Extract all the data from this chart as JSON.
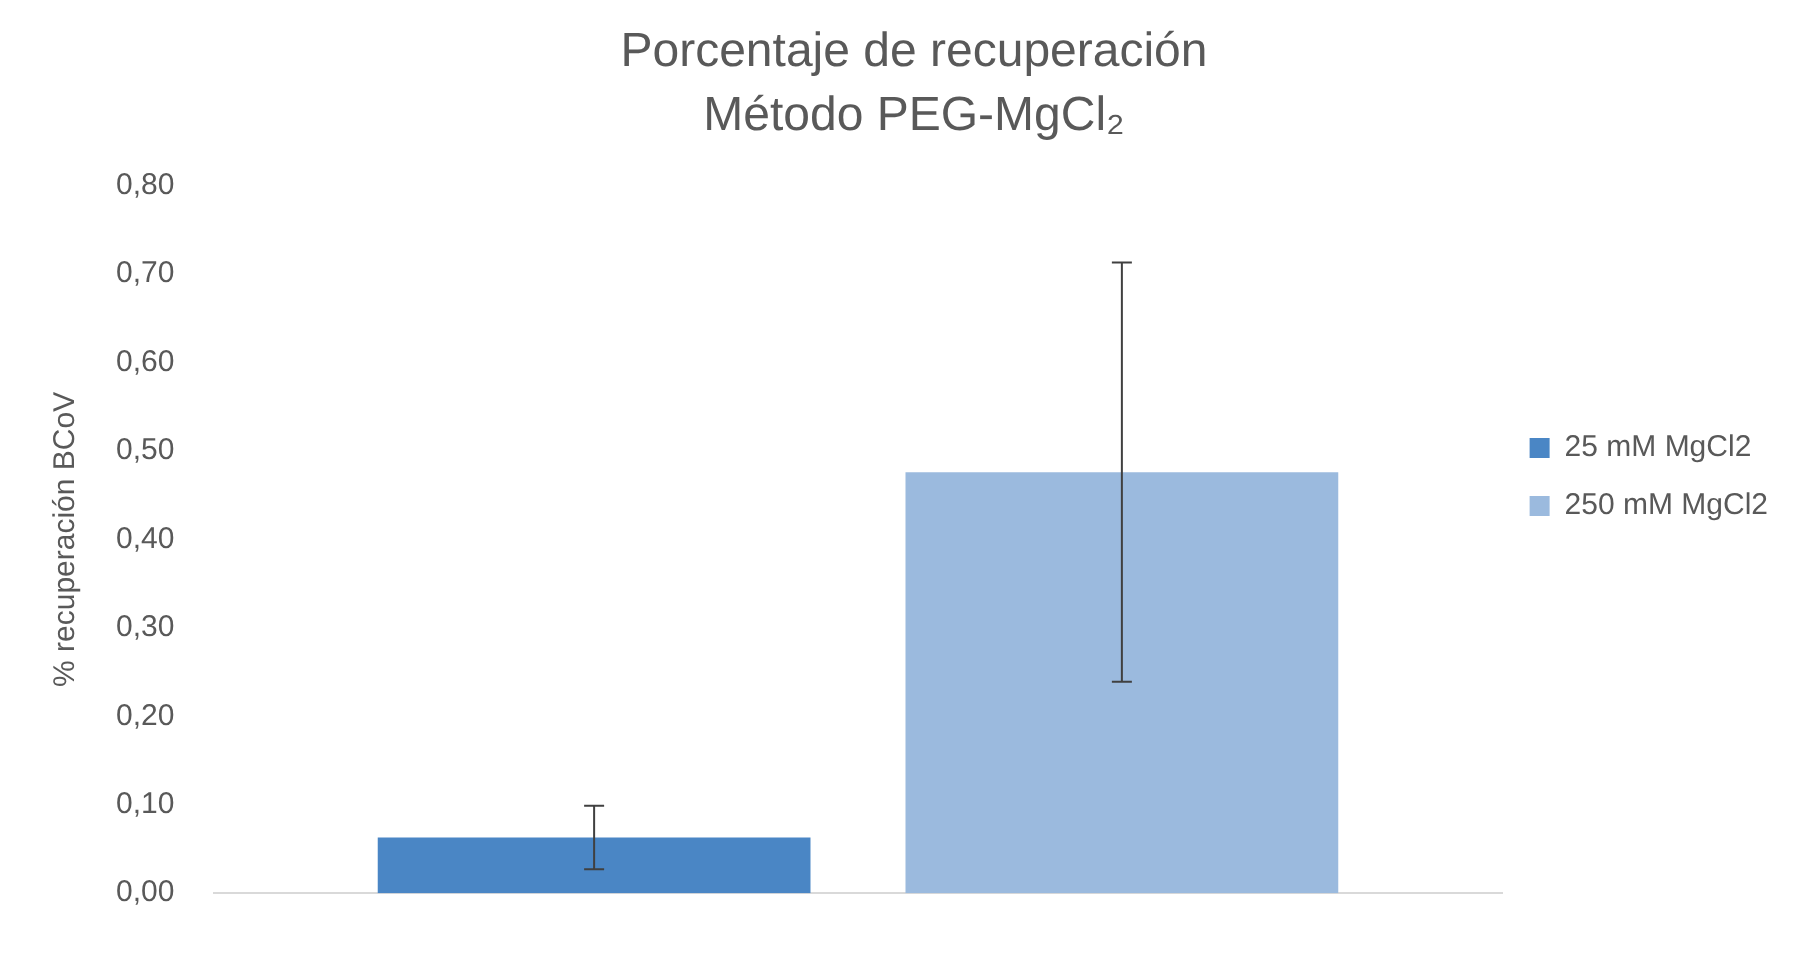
{
  "chart_data": {
    "type": "bar",
    "title": "Porcentaje de recuperación\nMétodo PEG-MgCl₂",
    "ylabel": "% recuperación BCoV",
    "categories": [
      null
    ],
    "series": [
      {
        "name": "25 mM MgCl2",
        "color": "#4a86c5",
        "values": [
          0.063
        ],
        "errors": [
          0.036
        ]
      },
      {
        "name": "250 mM MgCl2",
        "color": "#9bbade",
        "values": [
          0.476
        ],
        "errors": [
          0.237
        ]
      }
    ],
    "ylim": [
      0,
      0.8
    ],
    "yticks": [
      {
        "value": 0,
        "label": "0,00"
      },
      {
        "value": 0.1,
        "label": "0,10"
      },
      {
        "value": 0.2,
        "label": "0,20"
      },
      {
        "value": 0.3,
        "label": "0,30"
      },
      {
        "value": 0.4,
        "label": "0,40"
      },
      {
        "value": 0.5,
        "label": "0,50"
      },
      {
        "value": 0.6,
        "label": "0,60"
      },
      {
        "value": 0.7,
        "label": "0,70"
      },
      {
        "value": 0.8,
        "label": "0,80"
      }
    ],
    "grid": false,
    "legend": "right"
  }
}
